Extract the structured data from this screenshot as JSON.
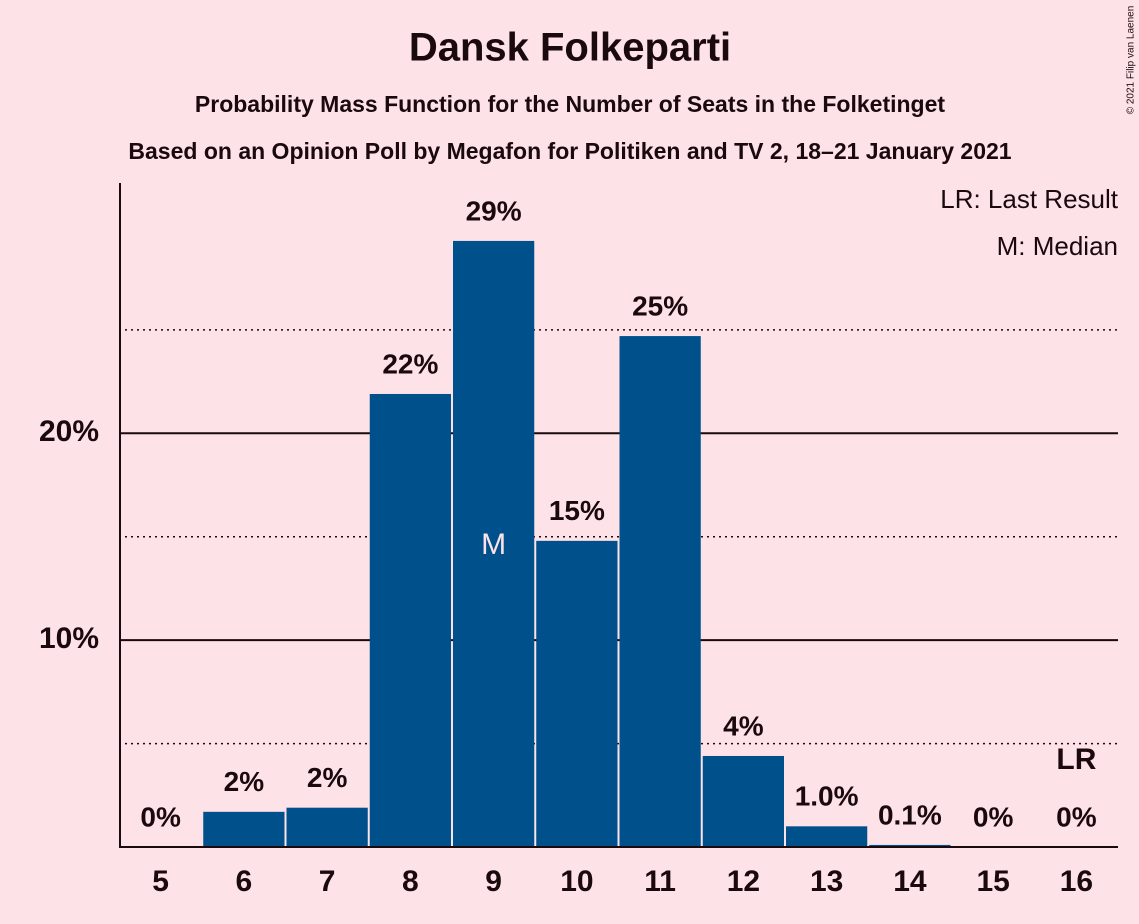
{
  "chart_data": {
    "type": "bar",
    "title": "Dansk Folkeparti",
    "subtitle": "Probability Mass Function for the Number of Seats in the Folketinget",
    "subtitle2": "Based on an Opinion Poll by Megafon for Politiken and TV 2, 18–21 January 2021",
    "copyright": "© 2021 Filip van Laenen",
    "legend": [
      "LR: Last Result",
      "M: Median"
    ],
    "categories": [
      "5",
      "6",
      "7",
      "8",
      "9",
      "10",
      "11",
      "12",
      "13",
      "14",
      "15",
      "16"
    ],
    "values": [
      0,
      1.7,
      1.9,
      21.9,
      29.3,
      14.8,
      24.7,
      4.4,
      1.0,
      0.1,
      0,
      0
    ],
    "value_labels": [
      "0%",
      "2%",
      "2%",
      "22%",
      "29%",
      "15%",
      "25%",
      "4%",
      "1.0%",
      "0.1%",
      "0%",
      "0%"
    ],
    "color": "#00508b",
    "ylim": [
      0,
      32.1
    ],
    "yticks": [
      {
        "value": 10,
        "label": "10%"
      },
      {
        "value": 20,
        "label": "20%"
      }
    ],
    "minor_gridlines": [
      5,
      15,
      25
    ],
    "grid": true,
    "annotations": [
      {
        "text": "M",
        "category": "9"
      },
      {
        "text": "LR",
        "category": "16"
      }
    ]
  }
}
